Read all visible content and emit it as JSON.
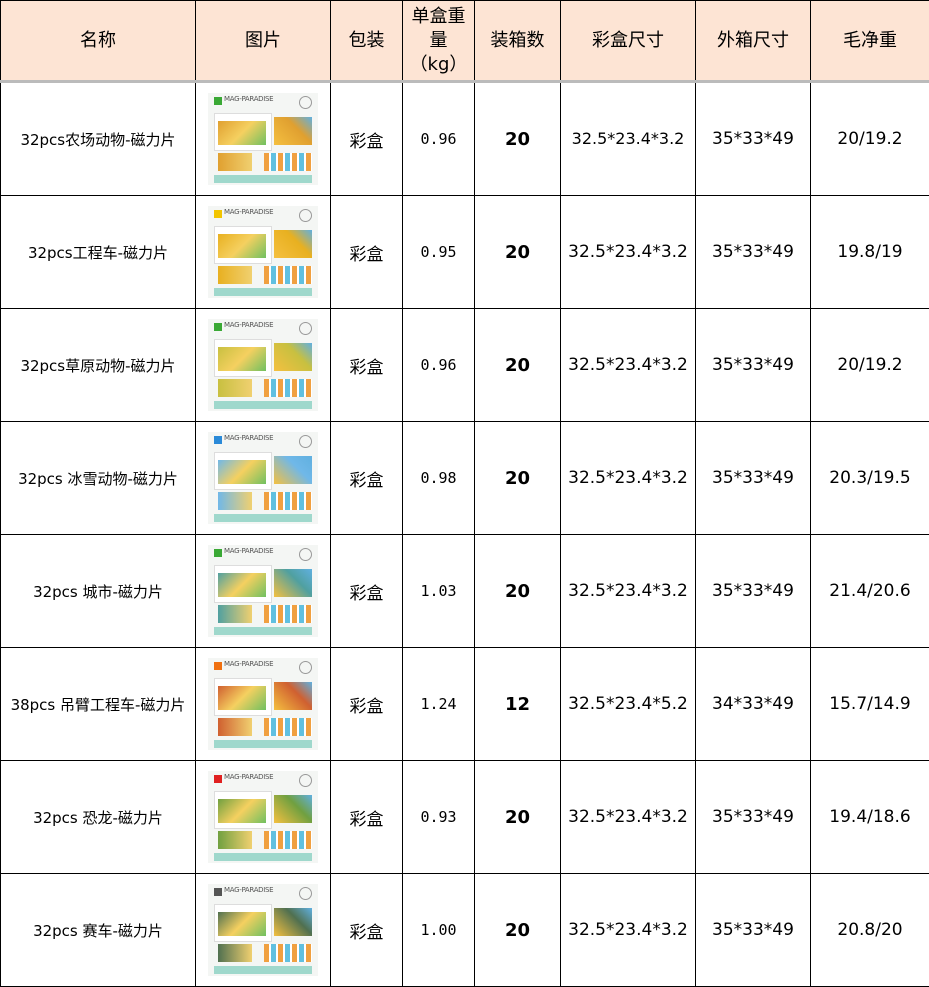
{
  "headers": [
    "名称",
    "图片",
    "包装",
    "单盒重量（kg）",
    "装箱数",
    "彩盒尺寸",
    "外箱尺寸",
    "毛净重"
  ],
  "brand": "MAG-PARADISE",
  "rows": [
    {
      "name": "32pcs农场动物-磁力片",
      "pack": "彩盒",
      "weight": "0.96",
      "qty": "20",
      "box": "32.5*23.4*3.2",
      "carton": "35*33*49",
      "gross_net": "20/19.2",
      "logo_color": "#3aa935",
      "theme_color": "#e0a030"
    },
    {
      "name": "32pcs工程车-磁力片",
      "pack": "彩盒",
      "weight": "0.95",
      "qty": "20",
      "box": "32.5*23.4*3.2",
      "carton": "35*33*49",
      "gross_net": "19.8/19",
      "logo_color": "#f2c500",
      "theme_color": "#e8b020"
    },
    {
      "name": "32pcs草原动物-磁力片",
      "pack": "彩盒",
      "weight": "0.96",
      "qty": "20",
      "box": "32.5*23.4*3.2",
      "carton": "35*33*49",
      "gross_net": "20/19.2",
      "logo_color": "#3aa935",
      "theme_color": "#c8c040"
    },
    {
      "name": "32pcs 冰雪动物-磁力片",
      "pack": "彩盒",
      "weight": "0.98",
      "qty": "20",
      "box": "32.5*23.4*3.2",
      "carton": "35*33*49",
      "gross_net": "20.3/19.5",
      "logo_color": "#2a8ad8",
      "theme_color": "#70b8e8"
    },
    {
      "name": "32pcs 城市-磁力片",
      "pack": "彩盒",
      "weight": "1.03",
      "qty": "20",
      "box": "32.5*23.4*3.2",
      "carton": "35*33*49",
      "gross_net": "21.4/20.6",
      "logo_color": "#3aa935",
      "theme_color": "#50a0a0"
    },
    {
      "name": "38pcs 吊臂工程车-磁力片",
      "pack": "彩盒",
      "weight": "1.24",
      "qty": "12",
      "box": "32.5*23.4*5.2",
      "carton": "34*33*49",
      "gross_net": "15.7/14.9",
      "logo_color": "#f07010",
      "theme_color": "#d06030"
    },
    {
      "name": "32pcs 恐龙-磁力片",
      "pack": "彩盒",
      "weight": "0.93",
      "qty": "20",
      "box": "32.5*23.4*3.2",
      "carton": "35*33*49",
      "gross_net": "19.4/18.6",
      "logo_color": "#e02020",
      "theme_color": "#70a040"
    },
    {
      "name": "32pcs 赛车-磁力片",
      "pack": "彩盒",
      "weight": "1.00",
      "qty": "20",
      "box": "32.5*23.4*3.2",
      "carton": "35*33*49",
      "gross_net": "20.8/20",
      "logo_color": "#555555",
      "theme_color": "#507050"
    }
  ]
}
